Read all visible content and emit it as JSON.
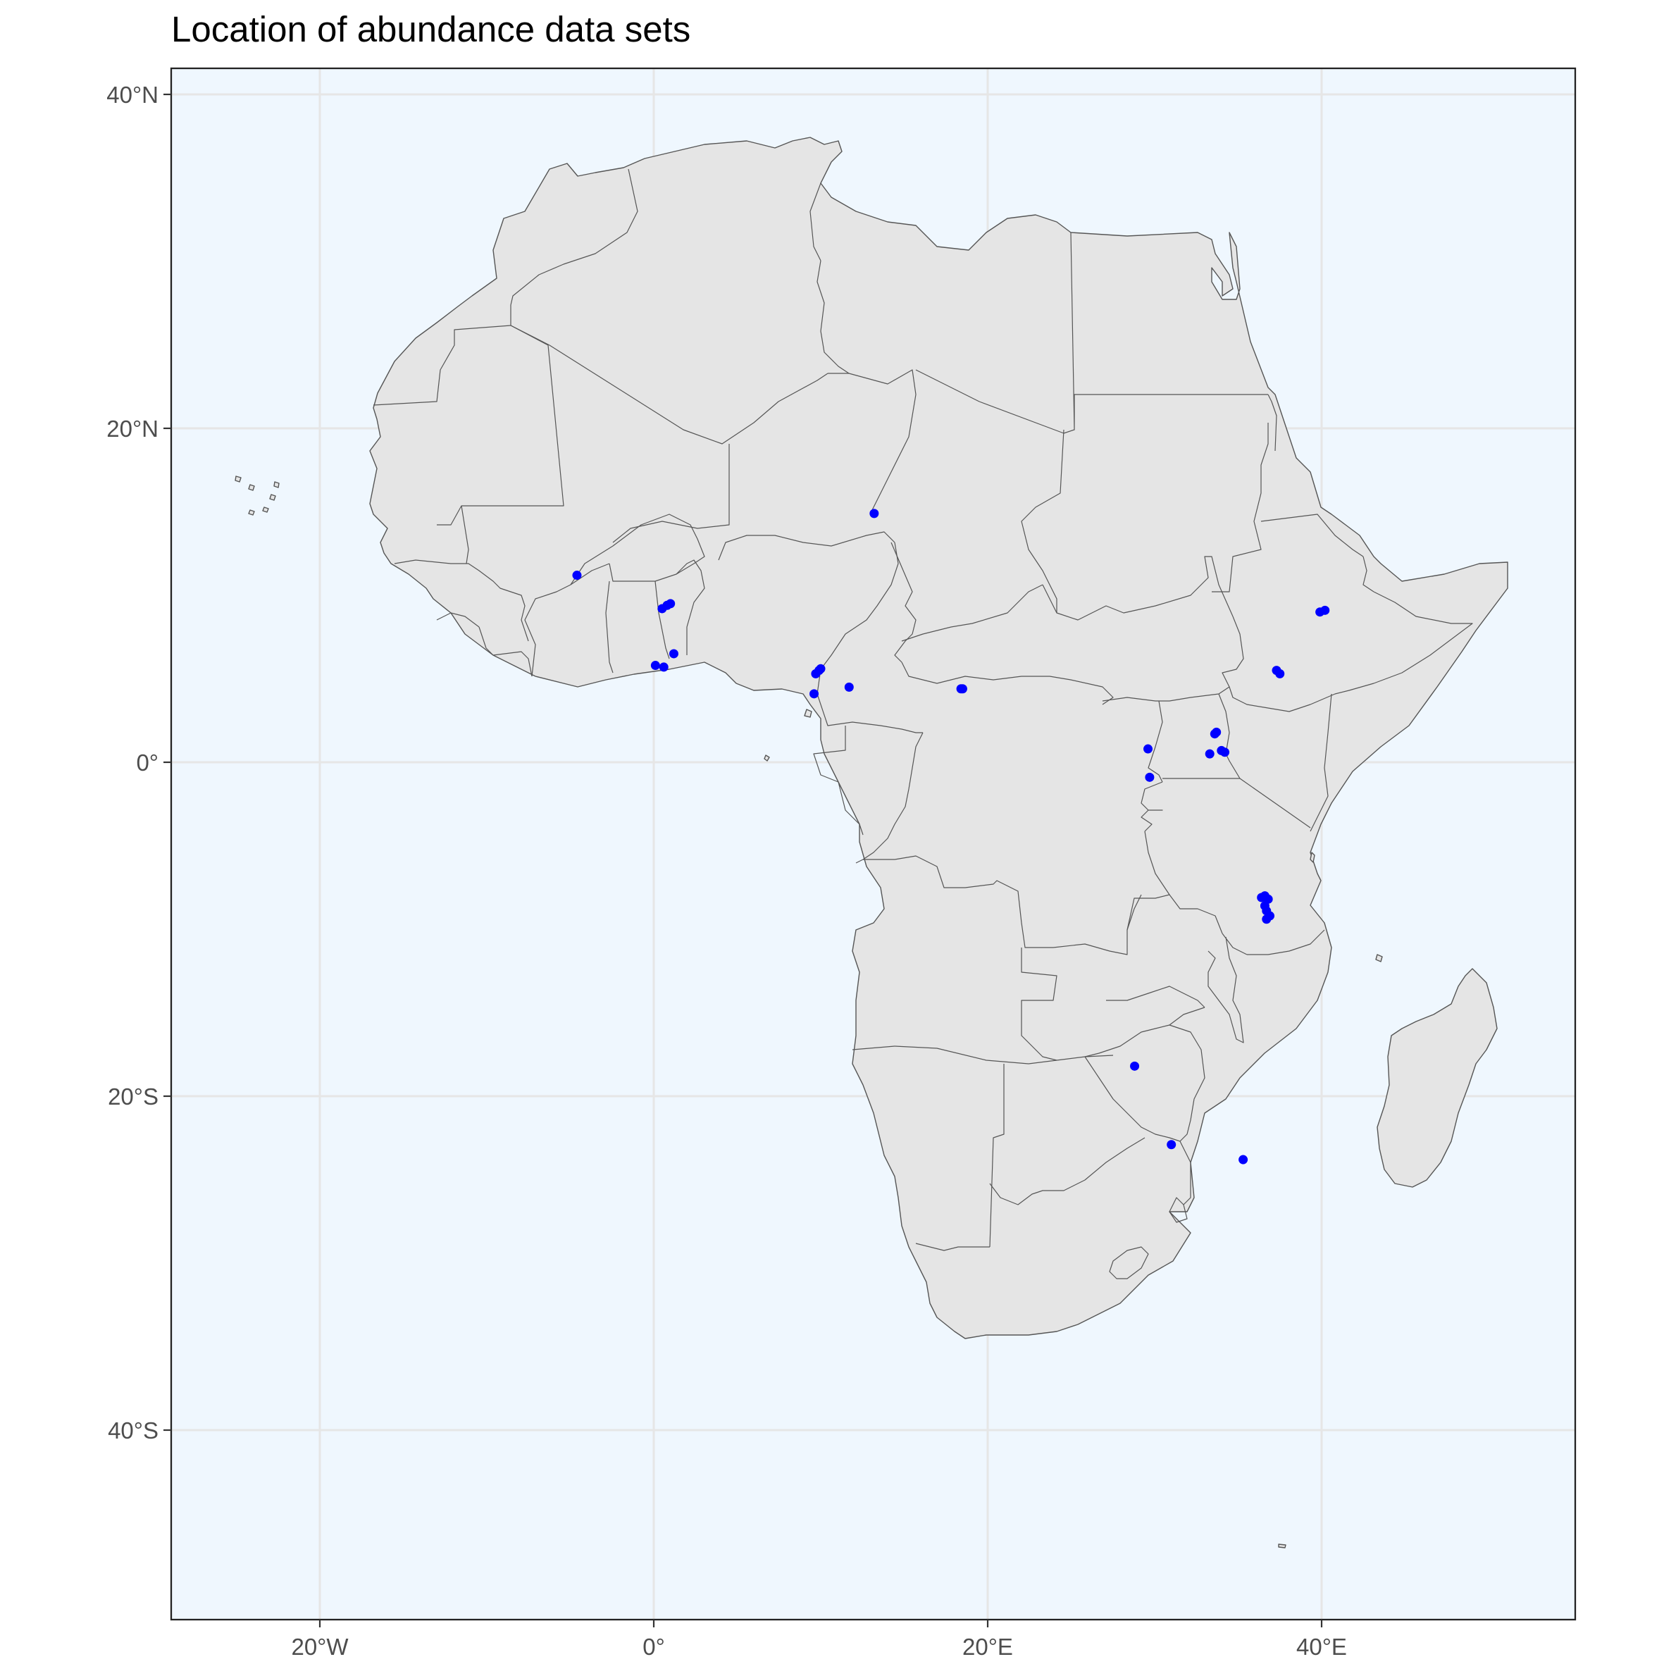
{
  "title": "Location of abundance data sets",
  "axes": {
    "x_ticks": [
      {
        "lon": -20,
        "label": "20°W"
      },
      {
        "lon": 0,
        "label": "0°"
      },
      {
        "lon": 20,
        "label": "20°E"
      },
      {
        "lon": 40,
        "label": "40°E"
      }
    ],
    "y_ticks": [
      {
        "lat": 40,
        "label": "40°N"
      },
      {
        "lat": 20,
        "label": "20°N"
      },
      {
        "lat": 0,
        "label": "0°"
      },
      {
        "lat": -20,
        "label": "20°S"
      },
      {
        "lat": -40,
        "label": "40°S"
      }
    ],
    "xlim": [
      -29.5,
      55
    ],
    "ylim": [
      -51.5,
      41.5
    ],
    "grid": true
  },
  "colors": {
    "ocean": "#eff7fe",
    "land": "#e5e5e5",
    "border": "#555555",
    "points": "#0000ff",
    "grid": "#e6e6e6",
    "frame": "#222222"
  },
  "chart_data": {
    "type": "scatter",
    "points": [
      {
        "lon": -4.6,
        "lat": 11.2
      },
      {
        "lon": 0.5,
        "lat": 9.2
      },
      {
        "lon": 0.8,
        "lat": 9.4
      },
      {
        "lon": 1.0,
        "lat": 9.5
      },
      {
        "lon": 0.1,
        "lat": 5.8
      },
      {
        "lon": 0.6,
        "lat": 5.7
      },
      {
        "lon": 1.2,
        "lat": 6.5
      },
      {
        "lon": 13.2,
        "lat": 14.9
      },
      {
        "lon": 9.7,
        "lat": 5.3
      },
      {
        "lon": 9.9,
        "lat": 5.5
      },
      {
        "lon": 10.0,
        "lat": 5.6
      },
      {
        "lon": 9.6,
        "lat": 4.1
      },
      {
        "lon": 11.7,
        "lat": 4.5
      },
      {
        "lon": 18.4,
        "lat": 4.4
      },
      {
        "lon": 18.5,
        "lat": 4.4
      },
      {
        "lon": 29.6,
        "lat": 0.8
      },
      {
        "lon": 29.7,
        "lat": -0.9
      },
      {
        "lon": 33.6,
        "lat": 1.7
      },
      {
        "lon": 33.7,
        "lat": 1.8
      },
      {
        "lon": 33.3,
        "lat": 0.5
      },
      {
        "lon": 34.0,
        "lat": 0.7
      },
      {
        "lon": 34.2,
        "lat": 0.6
      },
      {
        "lon": 39.9,
        "lat": 9.0
      },
      {
        "lon": 40.2,
        "lat": 9.1
      },
      {
        "lon": 37.3,
        "lat": 5.5
      },
      {
        "lon": 37.5,
        "lat": 5.3
      },
      {
        "lon": 36.4,
        "lat": -8.1
      },
      {
        "lon": 36.6,
        "lat": -8.0
      },
      {
        "lon": 36.8,
        "lat": -8.2
      },
      {
        "lon": 36.6,
        "lat": -8.6
      },
      {
        "lon": 36.7,
        "lat": -8.9
      },
      {
        "lon": 36.9,
        "lat": -9.2
      },
      {
        "lon": 36.7,
        "lat": -9.4
      },
      {
        "lon": 28.8,
        "lat": -18.2
      },
      {
        "lon": 31.0,
        "lat": -22.9
      },
      {
        "lon": 35.3,
        "lat": -23.8
      }
    ]
  }
}
